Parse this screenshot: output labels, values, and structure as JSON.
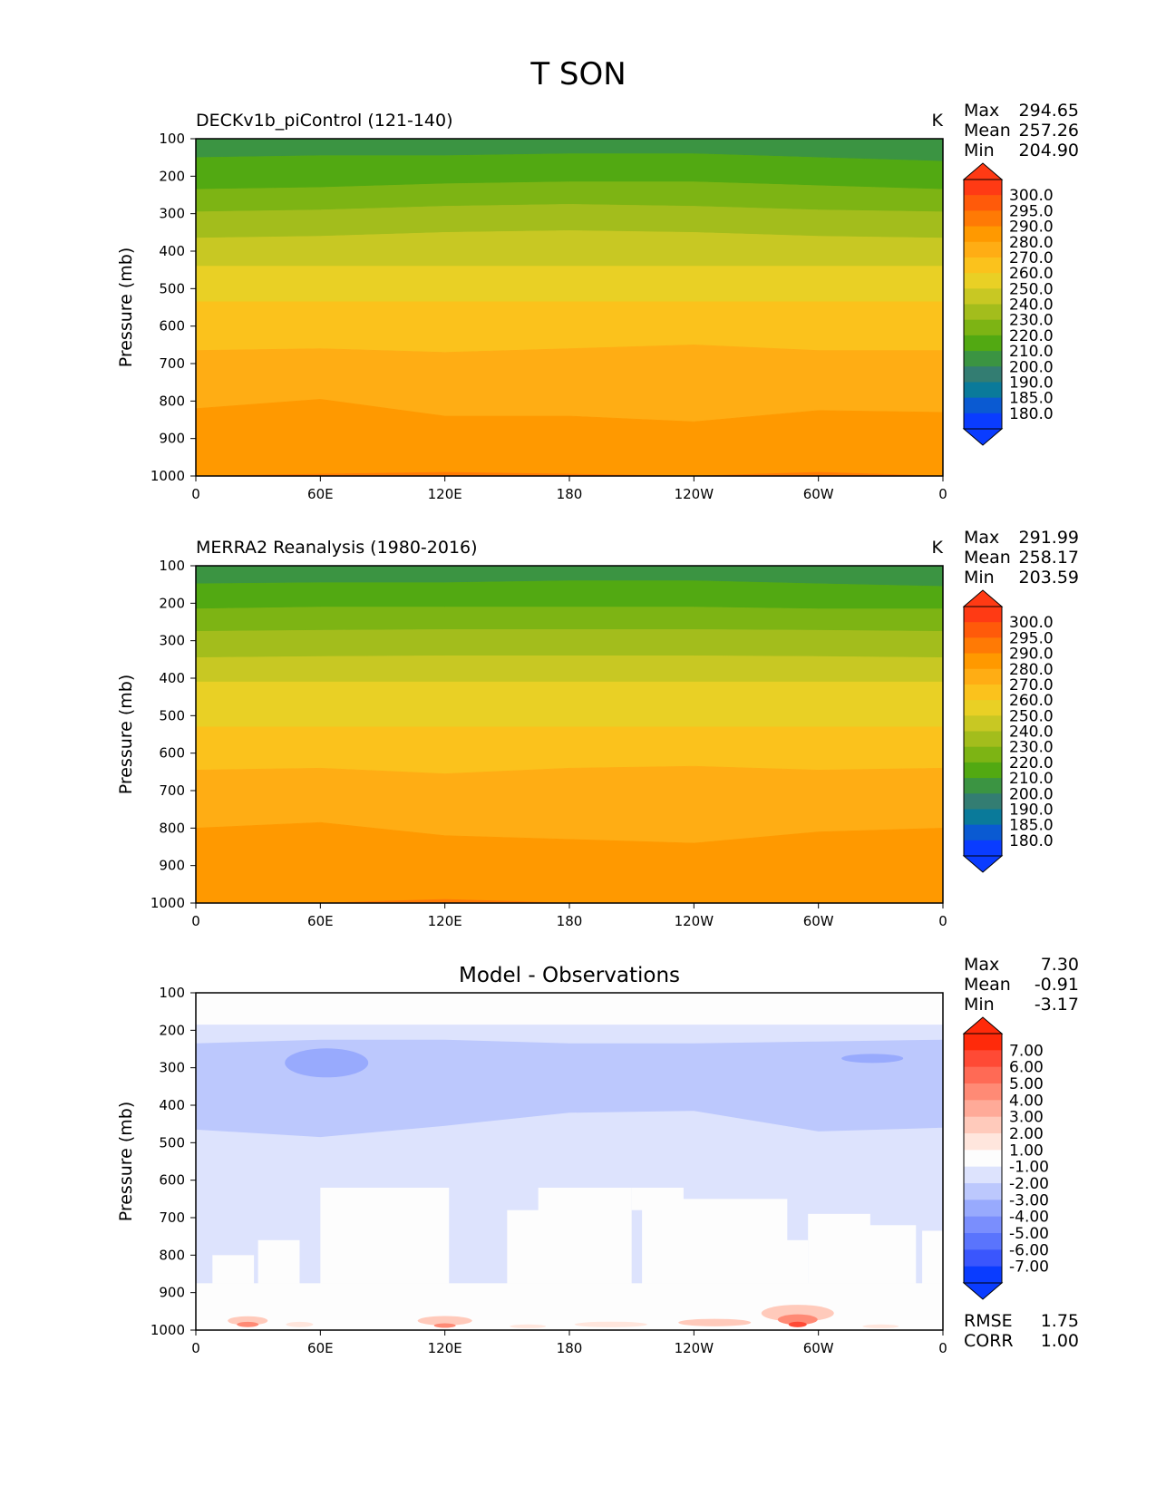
{
  "figure": {
    "title": "T SON"
  },
  "x_axis": {
    "tick_labels": [
      "0",
      "60E",
      "120E",
      "180",
      "120W",
      "60W",
      "0"
    ],
    "tick_positions_deg": [
      0,
      60,
      120,
      180,
      240,
      300,
      360
    ]
  },
  "y_axis": {
    "label": "Pressure (mb)",
    "tick_labels": [
      "100",
      "200",
      "300",
      "400",
      "500",
      "600",
      "700",
      "800",
      "900",
      "1000"
    ],
    "ticks_mb": [
      100,
      200,
      300,
      400,
      500,
      600,
      700,
      800,
      900,
      1000
    ]
  },
  "panels": [
    {
      "id": "model",
      "left_title": "DECKv1b_piControl (121-140)",
      "center_title": "",
      "units": "K",
      "stats": [
        {
          "label": "Max",
          "value": "294.65"
        },
        {
          "label": "Mean",
          "value": "257.26"
        },
        {
          "label": "Min",
          "value": "204.90"
        }
      ],
      "footer_stats": []
    },
    {
      "id": "obs",
      "left_title": "MERRA2 Reanalysis (1980-2016)",
      "center_title": "",
      "units": "K",
      "stats": [
        {
          "label": "Max",
          "value": "291.99"
        },
        {
          "label": "Mean",
          "value": "258.17"
        },
        {
          "label": "Min",
          "value": "203.59"
        }
      ],
      "footer_stats": []
    },
    {
      "id": "diff",
      "left_title": "",
      "center_title": "Model - Observations",
      "units": "",
      "stats": [
        {
          "label": "Max",
          "value": "7.30"
        },
        {
          "label": "Mean",
          "value": "-0.91"
        },
        {
          "label": "Min",
          "value": "-3.17"
        }
      ],
      "footer_stats": [
        {
          "label": "RMSE",
          "value": "1.75"
        },
        {
          "label": "CORR",
          "value": "1.00"
        }
      ]
    }
  ],
  "colorbars": {
    "abs": {
      "labels": [
        "300.0",
        "295.0",
        "290.0",
        "280.0",
        "270.0",
        "260.0",
        "250.0",
        "240.0",
        "230.0",
        "220.0",
        "210.0",
        "200.0",
        "190.0",
        "185.0",
        "180.0"
      ],
      "colors": [
        "#ff3a14",
        "#ff5a0a",
        "#ff7a05",
        "#ff9900",
        "#ffad14",
        "#fbc21c",
        "#e9d025",
        "#c8c823",
        "#a3bd1c",
        "#7db414",
        "#52a912",
        "#3b9442",
        "#337d72",
        "#0a7a9a",
        "#0a5ad2",
        "#0a3cff"
      ]
    },
    "diff": {
      "labels": [
        "7.00",
        "6.00",
        "5.00",
        "4.00",
        "3.00",
        "2.00",
        "1.00",
        "-1.00",
        "-2.00",
        "-3.00",
        "-4.00",
        "-5.00",
        "-6.00",
        "-7.00"
      ],
      "colors": [
        "#ff2a0a",
        "#ff4a35",
        "#ff6a55",
        "#ff8a75",
        "#ffaa98",
        "#ffcabb",
        "#ffe6dd",
        "#fdfdfd",
        "#dde3fd",
        "#bcc8fd",
        "#98aafd",
        "#7a8efd",
        "#5a74fd",
        "#3a56fd",
        "#0a3cff"
      ]
    }
  },
  "chart_data": [
    {
      "type": "heatmap",
      "title": "DECKv1b_piControl (121-140)",
      "units": "K",
      "xlabel": "",
      "ylabel": "Pressure (mb)",
      "x_ticks": [
        "0",
        "60E",
        "120E",
        "180",
        "120W",
        "60W",
        "0"
      ],
      "xlim_deg": [
        0,
        360
      ],
      "ylim_mb": [
        1000,
        100
      ],
      "levels": [
        180,
        185,
        190,
        200,
        210,
        220,
        230,
        240,
        250,
        260,
        270,
        280,
        290,
        295,
        300
      ],
      "level_boundaries_mb": [
        {
          "temp_K": 210,
          "pressure_mb": [
            150,
            145,
            145,
            140,
            140,
            150,
            160
          ]
        },
        {
          "temp_K": 220,
          "pressure_mb": [
            235,
            230,
            220,
            215,
            215,
            225,
            235
          ]
        },
        {
          "temp_K": 230,
          "pressure_mb": [
            295,
            290,
            280,
            275,
            280,
            290,
            295
          ]
        },
        {
          "temp_K": 240,
          "pressure_mb": [
            365,
            360,
            350,
            345,
            350,
            360,
            365
          ]
        },
        {
          "temp_K": 250,
          "pressure_mb": [
            440,
            440,
            440,
            440,
            440,
            440,
            440
          ]
        },
        {
          "temp_K": 260,
          "pressure_mb": [
            535,
            535,
            535,
            535,
            535,
            535,
            535
          ]
        },
        {
          "temp_K": 270,
          "pressure_mb": [
            665,
            660,
            670,
            660,
            650,
            665,
            665
          ]
        },
        {
          "temp_K": 280,
          "pressure_mb": [
            820,
            795,
            840,
            840,
            855,
            825,
            830
          ]
        },
        {
          "temp_K": 290,
          "pressure_mb": [
            1000,
            995,
            990,
            995,
            1000,
            990,
            1000
          ]
        }
      ],
      "stats": {
        "max": 294.65,
        "mean": 257.26,
        "min": 204.9
      }
    },
    {
      "type": "heatmap",
      "title": "MERRA2 Reanalysis (1980-2016)",
      "units": "K",
      "xlabel": "",
      "ylabel": "Pressure (mb)",
      "x_ticks": [
        "0",
        "60E",
        "120E",
        "180",
        "120W",
        "60W",
        "0"
      ],
      "xlim_deg": [
        0,
        360
      ],
      "ylim_mb": [
        1000,
        100
      ],
      "levels": [
        180,
        185,
        190,
        200,
        210,
        220,
        230,
        240,
        250,
        260,
        270,
        280,
        290,
        295,
        300
      ],
      "level_boundaries_mb": [
        {
          "temp_K": 210,
          "pressure_mb": [
            148,
            145,
            145,
            140,
            140,
            148,
            155
          ]
        },
        {
          "temp_K": 220,
          "pressure_mb": [
            215,
            210,
            210,
            210,
            210,
            215,
            215
          ]
        },
        {
          "temp_K": 230,
          "pressure_mb": [
            275,
            272,
            270,
            270,
            270,
            272,
            275
          ]
        },
        {
          "temp_K": 240,
          "pressure_mb": [
            345,
            342,
            340,
            340,
            340,
            342,
            345
          ]
        },
        {
          "temp_K": 250,
          "pressure_mb": [
            410,
            410,
            410,
            410,
            410,
            410,
            410
          ]
        },
        {
          "temp_K": 260,
          "pressure_mb": [
            530,
            530,
            530,
            530,
            530,
            530,
            530
          ]
        },
        {
          "temp_K": 270,
          "pressure_mb": [
            645,
            640,
            655,
            640,
            635,
            645,
            640
          ]
        },
        {
          "temp_K": 280,
          "pressure_mb": [
            800,
            785,
            820,
            830,
            840,
            810,
            800
          ]
        },
        {
          "temp_K": 290,
          "pressure_mb": [
            1000,
            1000,
            990,
            1000,
            1000,
            1000,
            1000
          ]
        }
      ],
      "stats": {
        "max": 291.99,
        "mean": 258.17,
        "min": 203.59
      }
    },
    {
      "type": "heatmap",
      "title": "Model - Observations",
      "units": "",
      "xlabel": "",
      "ylabel": "Pressure (mb)",
      "x_ticks": [
        "0",
        "60E",
        "120E",
        "180",
        "120W",
        "60W",
        "0"
      ],
      "xlim_deg": [
        0,
        360
      ],
      "ylim_mb": [
        1000,
        100
      ],
      "levels": [
        -7,
        -6,
        -5,
        -4,
        -3,
        -2,
        -1,
        1,
        2,
        3,
        4,
        5,
        6,
        7
      ],
      "regions": [
        {
          "value_range": [
            -1,
            1
          ],
          "pressure_mb": [
            100,
            180
          ],
          "note": "near zero at top"
        },
        {
          "value_range": [
            -2,
            -1
          ],
          "pressure_mb": [
            180,
            230
          ]
        },
        {
          "value_range": [
            -3,
            -2
          ],
          "pressure_mb": [
            230,
            480
          ]
        },
        {
          "value_range": [
            -4,
            -3
          ],
          "pressure_mb": [
            270,
            320
          ],
          "lon_deg": [
            40,
            85
          ]
        },
        {
          "value_range": [
            -2,
            -1
          ],
          "pressure_mb": [
            480,
            880
          ]
        },
        {
          "value_range": [
            -1,
            1
          ],
          "pressure_mb": [
            620,
            900
          ],
          "note": "patchy"
        },
        {
          "value_range": [
            1,
            7
          ],
          "pressure_mb": [
            900,
            1000
          ],
          "note": "positive spots near surface, max near 290E"
        }
      ],
      "stats": {
        "max": 7.3,
        "mean": -0.91,
        "min": -3.17,
        "rmse": 1.75,
        "corr": 1.0
      }
    }
  ]
}
